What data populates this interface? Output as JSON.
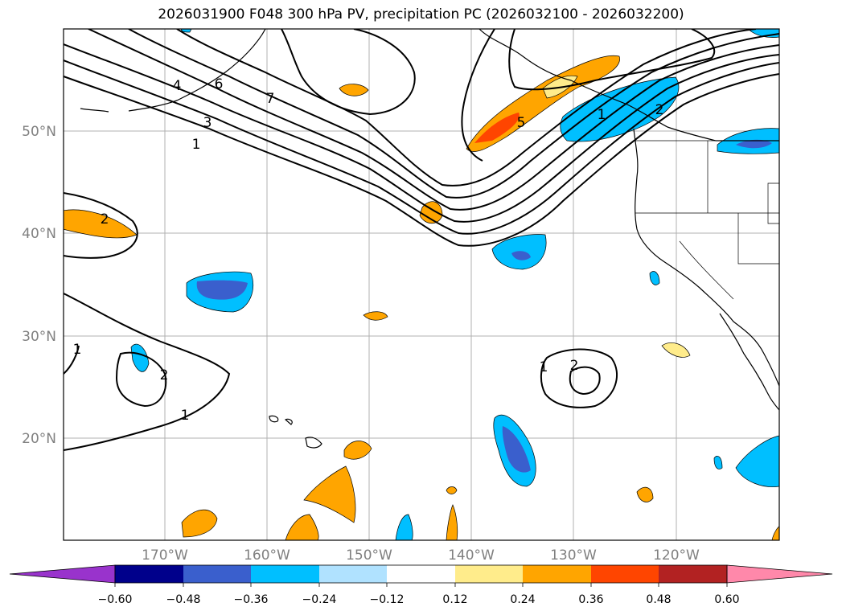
{
  "title": "2026031900 F048 300 hPa PV, precipitation PC (2026032100 - 2026032200)",
  "lat_labels": [
    "50°N",
    "40°N",
    "30°N",
    "20°N"
  ],
  "lon_labels": [
    "170°W",
    "160°W",
    "150°W",
    "140°W",
    "130°W",
    "120°W"
  ],
  "contour_labels": [
    "1",
    "2",
    "3",
    "4",
    "5",
    "6",
    "7"
  ],
  "colorbar": {
    "ticks": [
      "−0.60",
      "−0.48",
      "−0.36",
      "−0.24",
      "−0.12",
      "0.12",
      "0.24",
      "0.36",
      "0.48",
      "0.60"
    ],
    "colors": [
      "#9933cc",
      "#00008b",
      "#3a5fcd",
      "#00bfff",
      "#b0e2ff",
      "#ffffff",
      "#ffec8b",
      "#ffa500",
      "#ff4500",
      "#b22222",
      "#ff88aa"
    ]
  }
}
